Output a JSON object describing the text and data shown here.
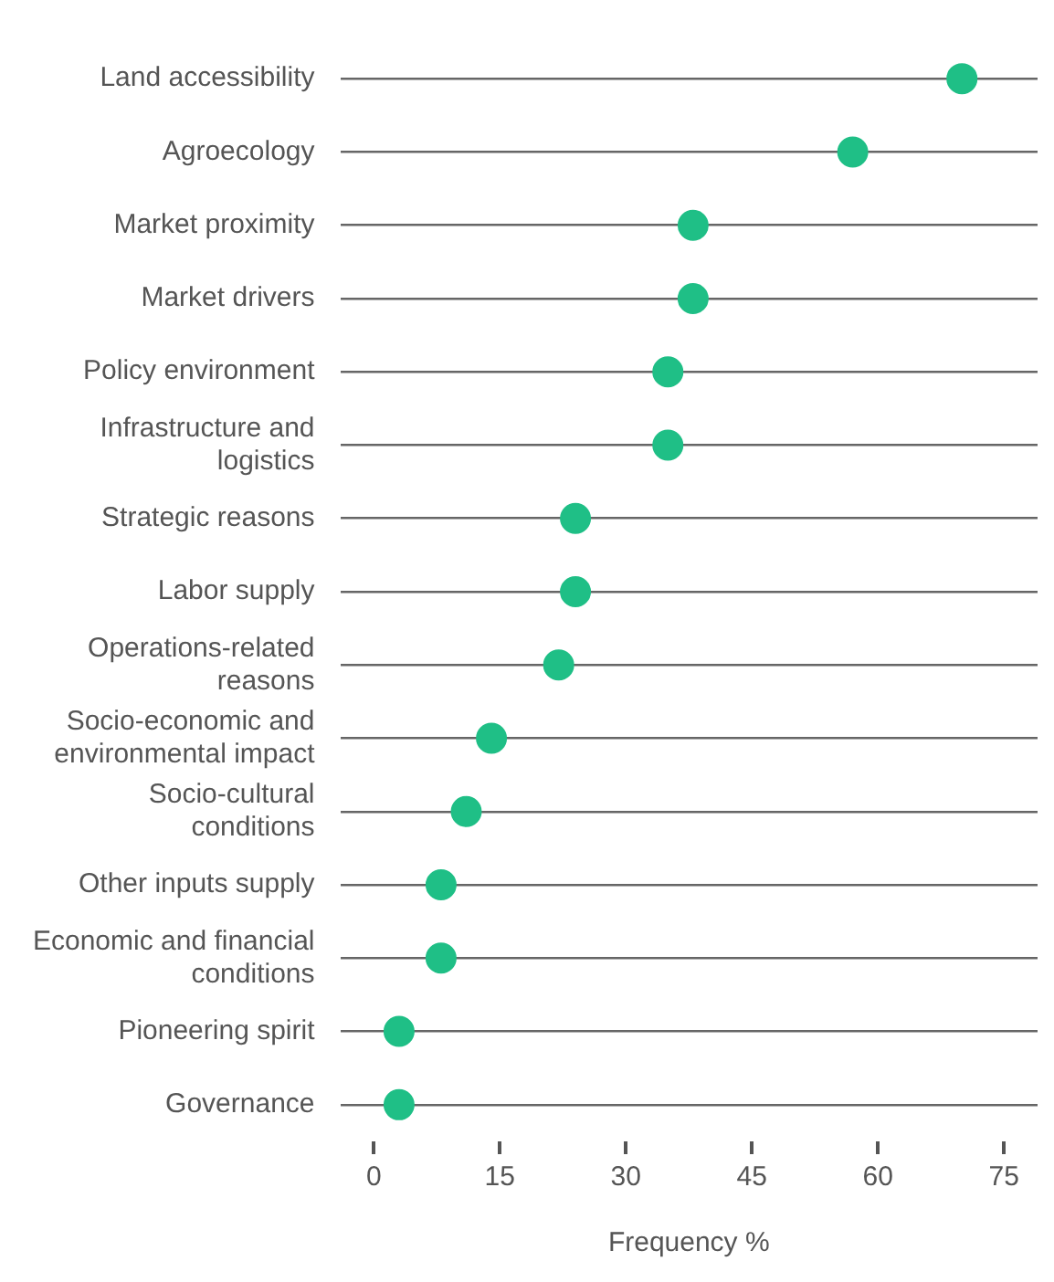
{
  "chart_data": {
    "type": "scatter",
    "orientation": "horizontal",
    "xlabel": "Frequency %",
    "categories": [
      "Land accessibility",
      "Agroecology",
      "Market proximity",
      "Market drivers",
      "Policy environment",
      "Infrastructure and logistics",
      "Strategic reasons",
      "Labor supply",
      "Operations-related reasons",
      "Socio-economic and environmental impact",
      "Socio-cultural conditions",
      "Other inputs supply",
      "Economic and financial conditions",
      "Pioneering spirit",
      "Governance"
    ],
    "values": [
      70,
      57,
      38,
      38,
      35,
      35,
      24,
      24,
      22,
      14,
      11,
      8,
      8,
      3,
      3
    ],
    "color": "#1fbf86",
    "xlim": [
      -4,
      79
    ],
    "xticks": [
      0,
      15,
      30,
      45,
      60,
      75
    ],
    "grid": "y",
    "legend": false,
    "marker": "circle"
  }
}
